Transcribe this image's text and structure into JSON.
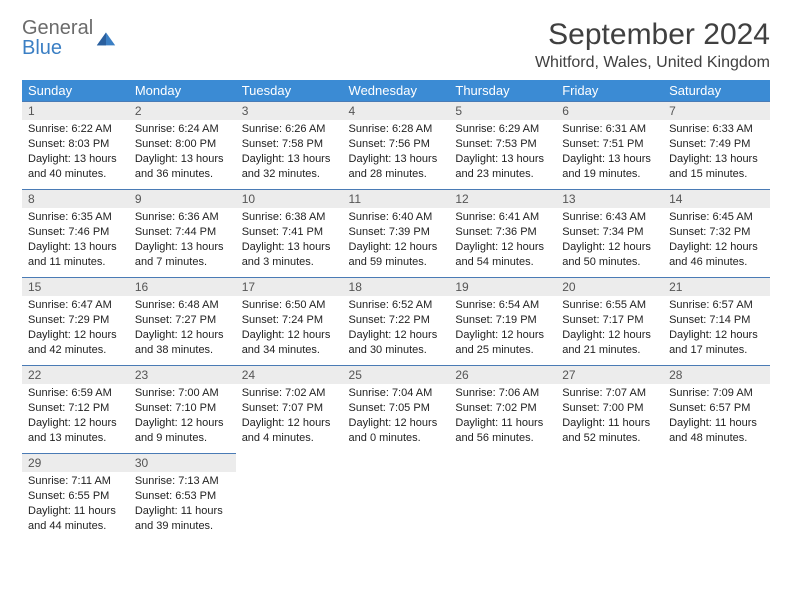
{
  "logo": {
    "line1": "General",
    "line2": "Blue"
  },
  "title": "September 2024",
  "location": "Whitford, Wales, United Kingdom",
  "colors": {
    "header_bg": "#3b8bd4",
    "header_text": "#ffffff",
    "day_number_bg": "#ececec",
    "day_border": "#4a7bb5",
    "logo_gray": "#6b6b6b",
    "logo_blue": "#3b7fc4"
  },
  "daysOfWeek": [
    "Sunday",
    "Monday",
    "Tuesday",
    "Wednesday",
    "Thursday",
    "Friday",
    "Saturday"
  ],
  "weeks": [
    [
      {
        "num": "1",
        "sunrise": "Sunrise: 6:22 AM",
        "sunset": "Sunset: 8:03 PM",
        "daylight": "Daylight: 13 hours and 40 minutes."
      },
      {
        "num": "2",
        "sunrise": "Sunrise: 6:24 AM",
        "sunset": "Sunset: 8:00 PM",
        "daylight": "Daylight: 13 hours and 36 minutes."
      },
      {
        "num": "3",
        "sunrise": "Sunrise: 6:26 AM",
        "sunset": "Sunset: 7:58 PM",
        "daylight": "Daylight: 13 hours and 32 minutes."
      },
      {
        "num": "4",
        "sunrise": "Sunrise: 6:28 AM",
        "sunset": "Sunset: 7:56 PM",
        "daylight": "Daylight: 13 hours and 28 minutes."
      },
      {
        "num": "5",
        "sunrise": "Sunrise: 6:29 AM",
        "sunset": "Sunset: 7:53 PM",
        "daylight": "Daylight: 13 hours and 23 minutes."
      },
      {
        "num": "6",
        "sunrise": "Sunrise: 6:31 AM",
        "sunset": "Sunset: 7:51 PM",
        "daylight": "Daylight: 13 hours and 19 minutes."
      },
      {
        "num": "7",
        "sunrise": "Sunrise: 6:33 AM",
        "sunset": "Sunset: 7:49 PM",
        "daylight": "Daylight: 13 hours and 15 minutes."
      }
    ],
    [
      {
        "num": "8",
        "sunrise": "Sunrise: 6:35 AM",
        "sunset": "Sunset: 7:46 PM",
        "daylight": "Daylight: 13 hours and 11 minutes."
      },
      {
        "num": "9",
        "sunrise": "Sunrise: 6:36 AM",
        "sunset": "Sunset: 7:44 PM",
        "daylight": "Daylight: 13 hours and 7 minutes."
      },
      {
        "num": "10",
        "sunrise": "Sunrise: 6:38 AM",
        "sunset": "Sunset: 7:41 PM",
        "daylight": "Daylight: 13 hours and 3 minutes."
      },
      {
        "num": "11",
        "sunrise": "Sunrise: 6:40 AM",
        "sunset": "Sunset: 7:39 PM",
        "daylight": "Daylight: 12 hours and 59 minutes."
      },
      {
        "num": "12",
        "sunrise": "Sunrise: 6:41 AM",
        "sunset": "Sunset: 7:36 PM",
        "daylight": "Daylight: 12 hours and 54 minutes."
      },
      {
        "num": "13",
        "sunrise": "Sunrise: 6:43 AM",
        "sunset": "Sunset: 7:34 PM",
        "daylight": "Daylight: 12 hours and 50 minutes."
      },
      {
        "num": "14",
        "sunrise": "Sunrise: 6:45 AM",
        "sunset": "Sunset: 7:32 PM",
        "daylight": "Daylight: 12 hours and 46 minutes."
      }
    ],
    [
      {
        "num": "15",
        "sunrise": "Sunrise: 6:47 AM",
        "sunset": "Sunset: 7:29 PM",
        "daylight": "Daylight: 12 hours and 42 minutes."
      },
      {
        "num": "16",
        "sunrise": "Sunrise: 6:48 AM",
        "sunset": "Sunset: 7:27 PM",
        "daylight": "Daylight: 12 hours and 38 minutes."
      },
      {
        "num": "17",
        "sunrise": "Sunrise: 6:50 AM",
        "sunset": "Sunset: 7:24 PM",
        "daylight": "Daylight: 12 hours and 34 minutes."
      },
      {
        "num": "18",
        "sunrise": "Sunrise: 6:52 AM",
        "sunset": "Sunset: 7:22 PM",
        "daylight": "Daylight: 12 hours and 30 minutes."
      },
      {
        "num": "19",
        "sunrise": "Sunrise: 6:54 AM",
        "sunset": "Sunset: 7:19 PM",
        "daylight": "Daylight: 12 hours and 25 minutes."
      },
      {
        "num": "20",
        "sunrise": "Sunrise: 6:55 AM",
        "sunset": "Sunset: 7:17 PM",
        "daylight": "Daylight: 12 hours and 21 minutes."
      },
      {
        "num": "21",
        "sunrise": "Sunrise: 6:57 AM",
        "sunset": "Sunset: 7:14 PM",
        "daylight": "Daylight: 12 hours and 17 minutes."
      }
    ],
    [
      {
        "num": "22",
        "sunrise": "Sunrise: 6:59 AM",
        "sunset": "Sunset: 7:12 PM",
        "daylight": "Daylight: 12 hours and 13 minutes."
      },
      {
        "num": "23",
        "sunrise": "Sunrise: 7:00 AM",
        "sunset": "Sunset: 7:10 PM",
        "daylight": "Daylight: 12 hours and 9 minutes."
      },
      {
        "num": "24",
        "sunrise": "Sunrise: 7:02 AM",
        "sunset": "Sunset: 7:07 PM",
        "daylight": "Daylight: 12 hours and 4 minutes."
      },
      {
        "num": "25",
        "sunrise": "Sunrise: 7:04 AM",
        "sunset": "Sunset: 7:05 PM",
        "daylight": "Daylight: 12 hours and 0 minutes."
      },
      {
        "num": "26",
        "sunrise": "Sunrise: 7:06 AM",
        "sunset": "Sunset: 7:02 PM",
        "daylight": "Daylight: 11 hours and 56 minutes."
      },
      {
        "num": "27",
        "sunrise": "Sunrise: 7:07 AM",
        "sunset": "Sunset: 7:00 PM",
        "daylight": "Daylight: 11 hours and 52 minutes."
      },
      {
        "num": "28",
        "sunrise": "Sunrise: 7:09 AM",
        "sunset": "Sunset: 6:57 PM",
        "daylight": "Daylight: 11 hours and 48 minutes."
      }
    ],
    [
      {
        "num": "29",
        "sunrise": "Sunrise: 7:11 AM",
        "sunset": "Sunset: 6:55 PM",
        "daylight": "Daylight: 11 hours and 44 minutes."
      },
      {
        "num": "30",
        "sunrise": "Sunrise: 7:13 AM",
        "sunset": "Sunset: 6:53 PM",
        "daylight": "Daylight: 11 hours and 39 minutes."
      },
      null,
      null,
      null,
      null,
      null
    ]
  ]
}
